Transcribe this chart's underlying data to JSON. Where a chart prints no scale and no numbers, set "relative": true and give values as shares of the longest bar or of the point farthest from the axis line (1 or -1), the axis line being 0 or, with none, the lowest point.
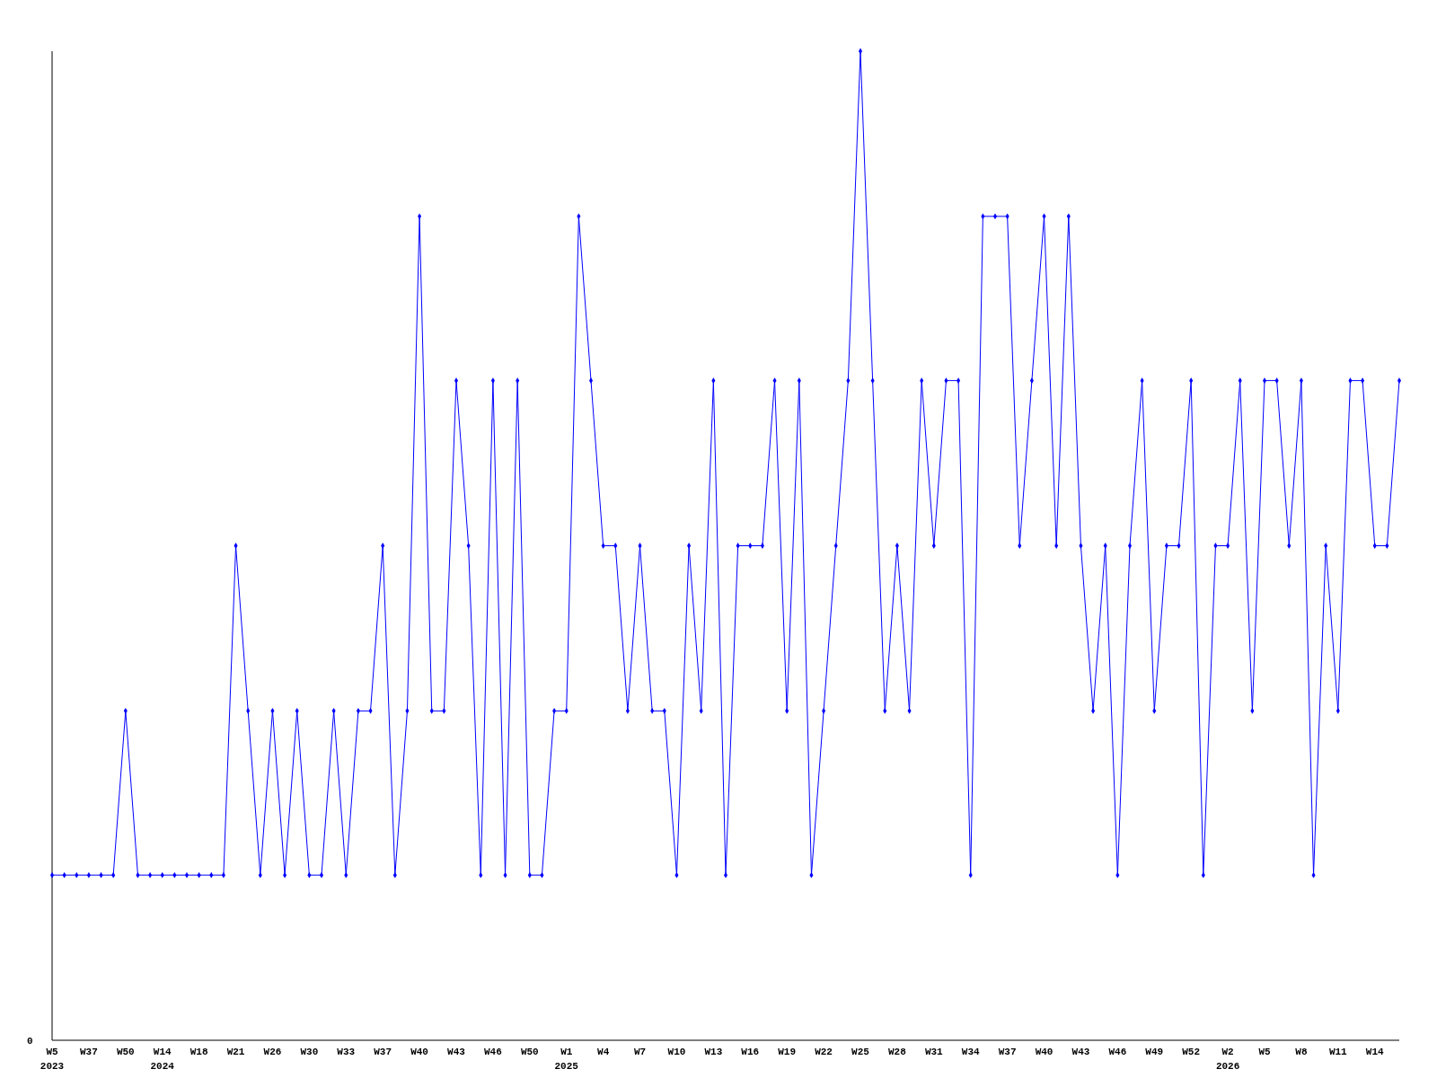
{
  "chart_data": {
    "type": "line",
    "relative": true,
    "marker": "diamond",
    "line_style": "solid",
    "annotations": [
      "0"
    ],
    "categories": [
      "W5\n2023",
      null,
      null,
      "W37",
      null,
      null,
      "W50",
      null,
      null,
      "W14\n2024",
      null,
      null,
      "W18",
      null,
      null,
      "W21",
      null,
      null,
      "W26",
      null,
      null,
      "W30",
      null,
      null,
      "W33",
      null,
      null,
      "W37",
      null,
      null,
      "W40",
      null,
      null,
      "W43",
      null,
      null,
      "W46",
      null,
      null,
      "W50",
      null,
      null,
      "W1\n2025",
      null,
      null,
      "W4",
      null,
      null,
      "W7",
      null,
      null,
      "W10",
      null,
      null,
      "W13",
      null,
      null,
      "W16",
      null,
      null,
      "W19",
      null,
      null,
      "W22",
      null,
      null,
      "W25",
      null,
      null,
      "W28",
      null,
      null,
      "W31",
      null,
      null,
      "W34",
      null,
      null,
      "W37",
      null,
      null,
      "W40",
      null,
      null,
      "W43",
      null,
      null,
      "W46",
      null,
      null,
      "W49",
      null,
      null,
      "W52",
      null,
      null,
      "W2\n2026",
      null,
      null,
      "W5",
      null,
      null,
      "W8",
      null,
      null,
      "W11",
      null,
      null,
      "W14",
      null,
      null
    ],
    "series": [
      {
        "color": "#0000ff",
        "values": [
          0.167,
          0.167,
          0.167,
          0.167,
          0.167,
          0.167,
          0.333,
          0.167,
          0.167,
          0.167,
          0.167,
          0.167,
          0.167,
          0.167,
          0.167,
          0.5,
          0.333,
          0.167,
          0.333,
          0.167,
          0.333,
          0.167,
          0.167,
          0.333,
          0.167,
          0.333,
          0.333,
          0.5,
          0.167,
          0.333,
          0.833,
          0.333,
          0.333,
          0.667,
          0.5,
          0.167,
          0.667,
          0.167,
          0.667,
          0.167,
          0.167,
          0.333,
          0.333,
          0.833,
          0.667,
          0.5,
          0.5,
          0.333,
          0.5,
          0.333,
          0.333,
          0.167,
          0.5,
          0.333,
          0.667,
          0.167,
          0.5,
          0.5,
          0.5,
          0.667,
          0.333,
          0.667,
          0.167,
          0.333,
          0.5,
          0.667,
          1,
          0.667,
          0.333,
          0.5,
          0.333,
          0.667,
          0.5,
          0.667,
          0.667,
          0.167,
          0.833,
          0.833,
          0.833,
          0.5,
          0.667,
          0.833,
          0.5,
          0.833,
          0.5,
          0.333,
          0.5,
          0.167,
          0.5,
          0.667,
          0.333,
          0.5,
          0.5,
          0.667,
          0.167,
          0.5,
          0.5,
          0.667,
          0.333,
          0.667,
          0.667,
          0.5,
          0.667,
          0.167,
          0.5,
          0.333,
          0.667,
          0.667,
          0.5,
          0.5,
          0.667
        ]
      }
    ]
  }
}
